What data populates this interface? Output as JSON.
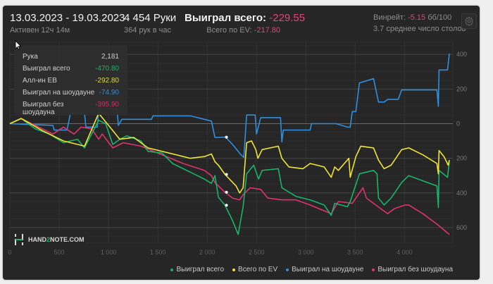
{
  "header": {
    "date_range": "13.03.2023 - 19.03.2023",
    "active": "Активен 12ч 14м",
    "hands": "4 454 Руки",
    "hands_per_hour": "364 рук в час",
    "won_total_label": "Выиграл всего:",
    "won_total_value": "-229.55",
    "ev_label": "Всего по EV:",
    "ev_value": "-217.80",
    "winrate_label": "Винрейт:",
    "winrate_value": "-5.15",
    "winrate_unit": "бб/100",
    "avg_tables": "3.7 среднее число столов",
    "settings_icon": "gear-icon"
  },
  "tooltip": {
    "rows": [
      {
        "label": "Рука",
        "value": "2,181"
      },
      {
        "label": "Выиграл всего",
        "value": "-470.80"
      },
      {
        "label": "Алл-ин ЕВ",
        "value": "-292.80"
      },
      {
        "label": "Выиграл на шоудауне",
        "value": "-74.90"
      },
      {
        "label": "Выиграл без шоудауна",
        "value": "-395.90"
      }
    ]
  },
  "logo": {
    "text_a": "HAND",
    "text_b": "2",
    "text_c": "NOTE.COM"
  },
  "colors": {
    "green": "#19b46c",
    "yellow": "#f0e531",
    "blue": "#2e8ee0",
    "pink": "#e0326c",
    "negative": "#e0457a"
  },
  "chart_data": {
    "type": "line",
    "xlim": [
      0,
      4490
    ],
    "ylim": [
      -690,
      470
    ],
    "x_ticks": [
      0,
      500,
      1000,
      1500,
      2000,
      2500,
      3000,
      3500,
      4000
    ],
    "x_tick_labels": [
      "0",
      "500",
      "1 000",
      "1 500",
      "2 000",
      "2 500",
      "3 000",
      "3 500",
      "4 000"
    ],
    "y_ticks": [
      400,
      200,
      0,
      -200,
      -400,
      -600
    ],
    "y_tick_labels": [
      "400",
      "200",
      "0",
      "200",
      "400",
      "600"
    ],
    "grid": true,
    "legend": "bottom-right",
    "series": [
      {
        "name": "Выиграл всего",
        "color": "#19b46c",
        "points": [
          [
            0,
            0
          ],
          [
            114,
            30
          ],
          [
            257,
            -30
          ],
          [
            400,
            -60
          ],
          [
            543,
            -110
          ],
          [
            686,
            -90
          ],
          [
            757,
            -140
          ],
          [
            829,
            -60
          ],
          [
            900,
            20
          ],
          [
            971,
            0
          ],
          [
            1007,
            -60
          ],
          [
            1043,
            -120
          ],
          [
            1114,
            -90
          ],
          [
            1186,
            -70
          ],
          [
            1329,
            -100
          ],
          [
            1400,
            -160
          ],
          [
            1543,
            -170
          ],
          [
            1650,
            -230
          ],
          [
            1757,
            -260
          ],
          [
            1864,
            -290
          ],
          [
            1971,
            -320
          ],
          [
            2043,
            -345
          ],
          [
            2079,
            -300
          ],
          [
            2114,
            -425
          ],
          [
            2181,
            -471
          ],
          [
            2257,
            -560
          ],
          [
            2314,
            -640
          ],
          [
            2364,
            -480
          ],
          [
            2400,
            -290
          ],
          [
            2471,
            -240
          ],
          [
            2521,
            -320
          ],
          [
            2557,
            -270
          ],
          [
            2721,
            -260
          ],
          [
            2757,
            -370
          ],
          [
            2900,
            -420
          ],
          [
            3043,
            -440
          ],
          [
            3186,
            -470
          ],
          [
            3257,
            -530
          ],
          [
            3293,
            -460
          ],
          [
            3421,
            -480
          ],
          [
            3450,
            -450
          ],
          [
            3543,
            -290
          ],
          [
            3686,
            -270
          ],
          [
            3721,
            -290
          ],
          [
            3736,
            -430
          ],
          [
            3793,
            -470
          ],
          [
            3864,
            -430
          ],
          [
            3971,
            -340
          ],
          [
            4043,
            -300
          ],
          [
            4186,
            -330
          ],
          [
            4329,
            -360
          ],
          [
            4343,
            -485
          ],
          [
            4350,
            -270
          ],
          [
            4436,
            -310
          ],
          [
            4454,
            -220
          ]
        ]
      },
      {
        "name": "Всего по EV",
        "color": "#f0e531",
        "points": [
          [
            0,
            0
          ],
          [
            114,
            30
          ],
          [
            329,
            -40
          ],
          [
            543,
            -100
          ],
          [
            757,
            -130
          ],
          [
            900,
            60
          ],
          [
            1043,
            -40
          ],
          [
            1114,
            -90
          ],
          [
            1257,
            -80
          ],
          [
            1400,
            -140
          ],
          [
            1614,
            -170
          ],
          [
            1829,
            -200
          ],
          [
            1971,
            -190
          ],
          [
            2043,
            -175
          ],
          [
            2079,
            -220
          ],
          [
            2114,
            -240
          ],
          [
            2181,
            -293
          ],
          [
            2293,
            -360
          ],
          [
            2329,
            -400
          ],
          [
            2364,
            -370
          ],
          [
            2400,
            -110
          ],
          [
            2450,
            -100
          ],
          [
            2493,
            -150
          ],
          [
            2514,
            -200
          ],
          [
            2557,
            -150
          ],
          [
            2721,
            -130
          ],
          [
            2757,
            -200
          ],
          [
            2829,
            -250
          ],
          [
            2971,
            -260
          ],
          [
            3043,
            -230
          ],
          [
            3186,
            -250
          ],
          [
            3257,
            -310
          ],
          [
            3293,
            -250
          ],
          [
            3329,
            -270
          ],
          [
            3436,
            -200
          ],
          [
            3450,
            -310
          ],
          [
            3507,
            -190
          ],
          [
            3557,
            -130
          ],
          [
            3686,
            -140
          ],
          [
            3736,
            -210
          ],
          [
            3793,
            -260
          ],
          [
            3864,
            -240
          ],
          [
            3971,
            -150
          ],
          [
            4043,
            -140
          ],
          [
            4186,
            -180
          ],
          [
            4329,
            -230
          ],
          [
            4343,
            -290
          ],
          [
            4350,
            -155
          ],
          [
            4400,
            -190
          ],
          [
            4443,
            -240
          ],
          [
            4454,
            -210
          ]
        ]
      },
      {
        "name": "Выиграл на шоудауне",
        "color": "#2e8ee0",
        "points": [
          [
            0,
            0
          ],
          [
            436,
            -10
          ],
          [
            450,
            -37
          ],
          [
            579,
            -37
          ],
          [
            593,
            0
          ],
          [
            614,
            60
          ],
          [
            757,
            60
          ],
          [
            771,
            -20
          ],
          [
            886,
            -20
          ],
          [
            900,
            85
          ],
          [
            1086,
            85
          ],
          [
            1100,
            -10
          ],
          [
            1136,
            25
          ],
          [
            1436,
            25
          ],
          [
            1450,
            45
          ],
          [
            1829,
            45
          ],
          [
            1971,
            25
          ],
          [
            2043,
            15
          ],
          [
            2079,
            -80
          ],
          [
            2186,
            -78
          ],
          [
            2257,
            -120
          ],
          [
            2343,
            -180
          ],
          [
            2371,
            -195
          ],
          [
            2400,
            50
          ],
          [
            2486,
            50
          ],
          [
            2500,
            -60
          ],
          [
            2543,
            35
          ],
          [
            2743,
            35
          ],
          [
            2757,
            -105
          ],
          [
            2771,
            -37
          ],
          [
            3043,
            -37
          ],
          [
            3057,
            0
          ],
          [
            3307,
            0
          ],
          [
            3421,
            -20
          ],
          [
            3450,
            -20
          ],
          [
            3471,
            70
          ],
          [
            3507,
            70
          ],
          [
            3543,
            235
          ],
          [
            3686,
            260
          ],
          [
            3736,
            125
          ],
          [
            3793,
            125
          ],
          [
            3829,
            140
          ],
          [
            3936,
            140
          ],
          [
            3971,
            195
          ],
          [
            4329,
            195
          ],
          [
            4343,
            100
          ],
          [
            4350,
            310
          ],
          [
            4436,
            310
          ],
          [
            4443,
            345
          ],
          [
            4454,
            405
          ]
        ]
      },
      {
        "name": "Выиграл без шоудауна",
        "color": "#e0326c",
        "points": [
          [
            0,
            0
          ],
          [
            114,
            30
          ],
          [
            329,
            -30
          ],
          [
            436,
            -60
          ],
          [
            543,
            -20
          ],
          [
            650,
            -60
          ],
          [
            721,
            -20
          ],
          [
            829,
            -30
          ],
          [
            900,
            -90
          ],
          [
            936,
            -60
          ],
          [
            1043,
            -140
          ],
          [
            1150,
            -110
          ],
          [
            1329,
            -130
          ],
          [
            1543,
            -180
          ],
          [
            1757,
            -230
          ],
          [
            1971,
            -270
          ],
          [
            2043,
            -300
          ],
          [
            2079,
            -340
          ],
          [
            2150,
            -380
          ],
          [
            2181,
            -396
          ],
          [
            2257,
            -430
          ],
          [
            2329,
            -440
          ],
          [
            2364,
            -410
          ],
          [
            2436,
            -370
          ],
          [
            2543,
            -380
          ],
          [
            2614,
            -430
          ],
          [
            2757,
            -440
          ],
          [
            2900,
            -440
          ],
          [
            3043,
            -470
          ],
          [
            3257,
            -520
          ],
          [
            3329,
            -450
          ],
          [
            3471,
            -460
          ],
          [
            3543,
            -400
          ],
          [
            3579,
            -370
          ],
          [
            3614,
            -430
          ],
          [
            3757,
            -490
          ],
          [
            3829,
            -520
          ],
          [
            3900,
            -490
          ],
          [
            4007,
            -470
          ],
          [
            4043,
            -470
          ],
          [
            4186,
            -520
          ],
          [
            4329,
            -580
          ],
          [
            4454,
            -640
          ]
        ]
      }
    ],
    "hover_hand": 2181
  }
}
